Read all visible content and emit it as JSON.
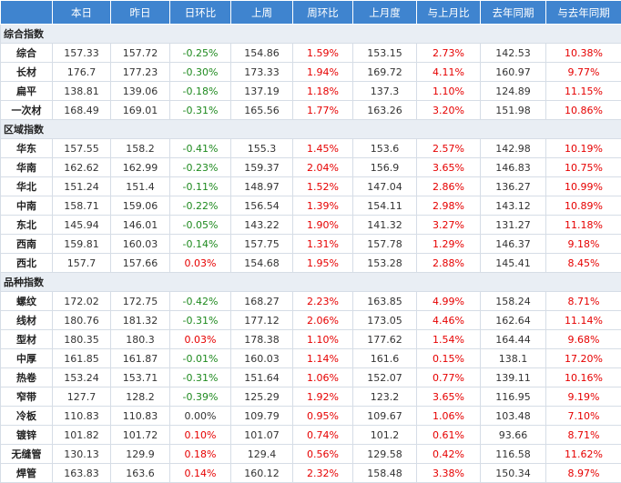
{
  "headers": [
    "",
    "本日",
    "昨日",
    "日环比",
    "上周",
    "周环比",
    "上月度",
    "与上月比",
    "去年同期",
    "与去年同期"
  ],
  "colors": {
    "header_bg": "#3f84cf",
    "section_bg": "#e9eef4",
    "up": "#e60000",
    "down": "#1f8a1f",
    "flat": "#333333"
  },
  "sections": [
    {
      "title": "综合指数",
      "rows": [
        {
          "name": "综合",
          "today": "157.33",
          "yesterday": "157.72",
          "day_change": "-0.25%",
          "last_week": "154.86",
          "week_change": "1.59%",
          "last_month": "153.15",
          "month_change": "2.73%",
          "last_year": "142.53",
          "year_change": "10.38%"
        },
        {
          "name": "长材",
          "today": "176.7",
          "yesterday": "177.23",
          "day_change": "-0.30%",
          "last_week": "173.33",
          "week_change": "1.94%",
          "last_month": "169.72",
          "month_change": "4.11%",
          "last_year": "160.97",
          "year_change": "9.77%"
        },
        {
          "name": "扁平",
          "today": "138.81",
          "yesterday": "139.06",
          "day_change": "-0.18%",
          "last_week": "137.19",
          "week_change": "1.18%",
          "last_month": "137.3",
          "month_change": "1.10%",
          "last_year": "124.89",
          "year_change": "11.15%"
        },
        {
          "name": "一次材",
          "today": "168.49",
          "yesterday": "169.01",
          "day_change": "-0.31%",
          "last_week": "165.56",
          "week_change": "1.77%",
          "last_month": "163.26",
          "month_change": "3.20%",
          "last_year": "151.98",
          "year_change": "10.86%"
        }
      ]
    },
    {
      "title": "区域指数",
      "rows": [
        {
          "name": "华东",
          "today": "157.55",
          "yesterday": "158.2",
          "day_change": "-0.41%",
          "last_week": "155.3",
          "week_change": "1.45%",
          "last_month": "153.6",
          "month_change": "2.57%",
          "last_year": "142.98",
          "year_change": "10.19%"
        },
        {
          "name": "华南",
          "today": "162.62",
          "yesterday": "162.99",
          "day_change": "-0.23%",
          "last_week": "159.37",
          "week_change": "2.04%",
          "last_month": "156.9",
          "month_change": "3.65%",
          "last_year": "146.83",
          "year_change": "10.75%"
        },
        {
          "name": "华北",
          "today": "151.24",
          "yesterday": "151.4",
          "day_change": "-0.11%",
          "last_week": "148.97",
          "week_change": "1.52%",
          "last_month": "147.04",
          "month_change": "2.86%",
          "last_year": "136.27",
          "year_change": "10.99%"
        },
        {
          "name": "中南",
          "today": "158.71",
          "yesterday": "159.06",
          "day_change": "-0.22%",
          "last_week": "156.54",
          "week_change": "1.39%",
          "last_month": "154.11",
          "month_change": "2.98%",
          "last_year": "143.12",
          "year_change": "10.89%"
        },
        {
          "name": "东北",
          "today": "145.94",
          "yesterday": "146.01",
          "day_change": "-0.05%",
          "last_week": "143.22",
          "week_change": "1.90%",
          "last_month": "141.32",
          "month_change": "3.27%",
          "last_year": "131.27",
          "year_change": "11.18%"
        },
        {
          "name": "西南",
          "today": "159.81",
          "yesterday": "160.03",
          "day_change": "-0.14%",
          "last_week": "157.75",
          "week_change": "1.31%",
          "last_month": "157.78",
          "month_change": "1.29%",
          "last_year": "146.37",
          "year_change": "9.18%"
        },
        {
          "name": "西北",
          "today": "157.7",
          "yesterday": "157.66",
          "day_change": "0.03%",
          "last_week": "154.68",
          "week_change": "1.95%",
          "last_month": "153.28",
          "month_change": "2.88%",
          "last_year": "145.41",
          "year_change": "8.45%"
        }
      ]
    },
    {
      "title": "品种指数",
      "rows": [
        {
          "name": "螺纹",
          "today": "172.02",
          "yesterday": "172.75",
          "day_change": "-0.42%",
          "last_week": "168.27",
          "week_change": "2.23%",
          "last_month": "163.85",
          "month_change": "4.99%",
          "last_year": "158.24",
          "year_change": "8.71%"
        },
        {
          "name": "线材",
          "today": "180.76",
          "yesterday": "181.32",
          "day_change": "-0.31%",
          "last_week": "177.12",
          "week_change": "2.06%",
          "last_month": "173.05",
          "month_change": "4.46%",
          "last_year": "162.64",
          "year_change": "11.14%"
        },
        {
          "name": "型材",
          "today": "180.35",
          "yesterday": "180.3",
          "day_change": "0.03%",
          "last_week": "178.38",
          "week_change": "1.10%",
          "last_month": "177.62",
          "month_change": "1.54%",
          "last_year": "164.44",
          "year_change": "9.68%"
        },
        {
          "name": "中厚",
          "today": "161.85",
          "yesterday": "161.87",
          "day_change": "-0.01%",
          "last_week": "160.03",
          "week_change": "1.14%",
          "last_month": "161.6",
          "month_change": "0.15%",
          "last_year": "138.1",
          "year_change": "17.20%"
        },
        {
          "name": "热卷",
          "today": "153.24",
          "yesterday": "153.71",
          "day_change": "-0.31%",
          "last_week": "151.64",
          "week_change": "1.06%",
          "last_month": "152.07",
          "month_change": "0.77%",
          "last_year": "139.11",
          "year_change": "10.16%"
        },
        {
          "name": "窄带",
          "today": "127.7",
          "yesterday": "128.2",
          "day_change": "-0.39%",
          "last_week": "125.29",
          "week_change": "1.92%",
          "last_month": "123.2",
          "month_change": "3.65%",
          "last_year": "116.95",
          "year_change": "9.19%"
        },
        {
          "name": "冷板",
          "today": "110.83",
          "yesterday": "110.83",
          "day_change": "0.00%",
          "last_week": "109.79",
          "week_change": "0.95%",
          "last_month": "109.67",
          "month_change": "1.06%",
          "last_year": "103.48",
          "year_change": "7.10%"
        },
        {
          "name": "镀锌",
          "today": "101.82",
          "yesterday": "101.72",
          "day_change": "0.10%",
          "last_week": "101.07",
          "week_change": "0.74%",
          "last_month": "101.2",
          "month_change": "0.61%",
          "last_year": "93.66",
          "year_change": "8.71%"
        },
        {
          "name": "无缝管",
          "today": "130.13",
          "yesterday": "129.9",
          "day_change": "0.18%",
          "last_week": "129.4",
          "week_change": "0.56%",
          "last_month": "129.58",
          "month_change": "0.42%",
          "last_year": "116.58",
          "year_change": "11.62%"
        },
        {
          "name": "焊管",
          "today": "163.83",
          "yesterday": "163.6",
          "day_change": "0.14%",
          "last_week": "160.12",
          "week_change": "2.32%",
          "last_month": "158.48",
          "month_change": "3.38%",
          "last_year": "150.34",
          "year_change": "8.97%"
        }
      ]
    }
  ]
}
